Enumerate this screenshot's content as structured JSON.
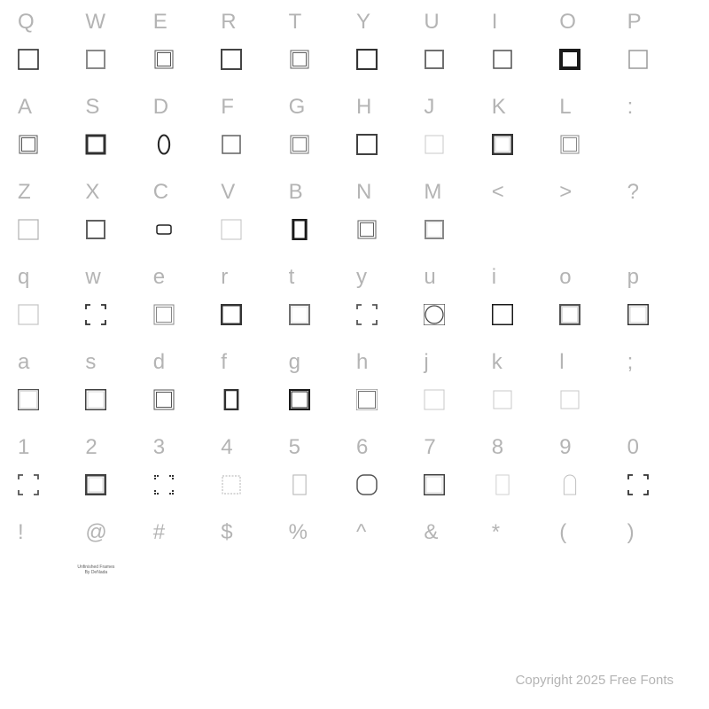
{
  "footer": "Copyright 2025 Free Fonts",
  "colors": {
    "char": "#b4b4b4",
    "glyph_stroke": "#303030",
    "glyph_light": "#bdbdbd",
    "background": "#ffffff"
  },
  "rows": [
    {
      "chars": [
        "Q",
        "W",
        "E",
        "R",
        "T",
        "Y",
        "U",
        "I",
        "O",
        "P"
      ],
      "glyphs": [
        {
          "t": "sq",
          "s": "#303030",
          "w": 1.6,
          "sz": 22,
          "fill": "none"
        },
        {
          "t": "sq",
          "s": "#8a8a8a",
          "w": 2,
          "sz": 20,
          "fill": "none"
        },
        {
          "t": "dbl",
          "s": "#555555",
          "sz": 20
        },
        {
          "t": "sq",
          "s": "#444444",
          "w": 2,
          "sz": 22,
          "fill": "none"
        },
        {
          "t": "dbl",
          "s": "#606060",
          "sz": 20
        },
        {
          "t": "sq",
          "s": "#333333",
          "w": 2.2,
          "sz": 22,
          "fill": "none"
        },
        {
          "t": "sq",
          "s": "#707070",
          "w": 2,
          "sz": 20,
          "fill": "none"
        },
        {
          "t": "sq",
          "s": "#505050",
          "w": 1.5,
          "sz": 20,
          "fill": "none"
        },
        {
          "t": "sq",
          "s": "#1a1a1a",
          "w": 4,
          "sz": 24,
          "fill": "#1a1a1a",
          "inner": "#ffffff"
        },
        {
          "t": "sq",
          "s": "#9a9a9a",
          "w": 1.5,
          "sz": 20,
          "fill": "none"
        }
      ]
    },
    {
      "chars": [
        "A",
        "S",
        "D",
        "F",
        "G",
        "H",
        "J",
        "K",
        "L",
        ":"
      ],
      "glyphs": [
        {
          "t": "dbl",
          "s": "#555555",
          "sz": 20
        },
        {
          "t": "sq",
          "s": "#303030",
          "w": 3,
          "sz": 20,
          "fill": "none"
        },
        {
          "t": "oval",
          "s": "#222222",
          "w": 2,
          "sz": 22
        },
        {
          "t": "sq",
          "s": "#606060",
          "w": 1.5,
          "sz": 20,
          "fill": "none"
        },
        {
          "t": "dbl",
          "s": "#707070",
          "sz": 20
        },
        {
          "t": "sq",
          "s": "#404040",
          "w": 2,
          "sz": 22,
          "fill": "none"
        },
        {
          "t": "sq",
          "s": "#c8c8c8",
          "w": 1,
          "sz": 20,
          "fill": "none"
        },
        {
          "t": "sq",
          "s": "#333333",
          "w": 3,
          "sz": 22,
          "fill": "none",
          "pattern": true
        },
        {
          "t": "dbl",
          "s": "#888888",
          "sz": 20
        },
        {
          "t": "none"
        }
      ]
    },
    {
      "chars": [
        "Z",
        "X",
        "C",
        "V",
        "B",
        "N",
        "M",
        "<",
        ">",
        "?"
      ],
      "glyphs": [
        {
          "t": "sq",
          "s": "#b0b0b0",
          "w": 1.2,
          "sz": 22,
          "fill": "none"
        },
        {
          "t": "sq",
          "s": "#606060",
          "w": 2,
          "sz": 20,
          "fill": "none"
        },
        {
          "t": "hshape",
          "s": "#222222"
        },
        {
          "t": "sq",
          "s": "#c0c0c0",
          "w": 1,
          "sz": 22,
          "fill": "none"
        },
        {
          "t": "rect",
          "s": "#1a1a1a",
          "w": 3,
          "sz": 22,
          "fill": "none"
        },
        {
          "t": "dbl",
          "s": "#606060",
          "sz": 20
        },
        {
          "t": "sq",
          "s": "#888888",
          "w": 2,
          "sz": 20,
          "fill": "none",
          "pattern": true
        },
        {
          "t": "none"
        },
        {
          "t": "none"
        },
        {
          "t": "none"
        }
      ]
    },
    {
      "chars": [
        "q",
        "w",
        "e",
        "r",
        "t",
        "y",
        "u",
        "i",
        "o",
        "p"
      ],
      "glyphs": [
        {
          "t": "sq",
          "s": "#c8c8c8",
          "w": 1.3,
          "sz": 22,
          "fill": "none"
        },
        {
          "t": "corners",
          "s": "#303030",
          "sz": 22
        },
        {
          "t": "dbl",
          "s": "#888888",
          "sz": 22
        },
        {
          "t": "sq",
          "s": "#333333",
          "w": 3,
          "sz": 22,
          "fill": "none"
        },
        {
          "t": "sq",
          "s": "#707070",
          "w": 2,
          "sz": 22,
          "fill": "none",
          "pattern": true
        },
        {
          "t": "corners",
          "s": "#555555",
          "sz": 22,
          "curve": true
        },
        {
          "t": "circle-in-sq",
          "s": "#404040",
          "sz": 24
        },
        {
          "t": "sq",
          "s": "#1a1a1a",
          "w": 3,
          "sz": 24,
          "fill": "none"
        },
        {
          "t": "sq",
          "s": "#555555",
          "w": 2.5,
          "sz": 22,
          "fill": "none",
          "pattern": true
        },
        {
          "t": "sq",
          "s": "#333333",
          "w": 3,
          "sz": 24,
          "fill": "none",
          "pattern": true
        }
      ]
    },
    {
      "chars": [
        "a",
        "s",
        "d",
        "f",
        "g",
        "h",
        "j",
        "k",
        "l",
        ";"
      ],
      "glyphs": [
        {
          "t": "sq",
          "s": "#505050",
          "w": 2.5,
          "sz": 24,
          "fill": "none",
          "pattern": true
        },
        {
          "t": "sq",
          "s": "#404040",
          "w": 3,
          "sz": 24,
          "fill": "none",
          "pattern": true
        },
        {
          "t": "dbl",
          "s": "#555555",
          "sz": 22
        },
        {
          "t": "rect",
          "s": "#303030",
          "w": 2.5,
          "sz": 22,
          "fill": "none"
        },
        {
          "t": "sq",
          "s": "#1a1a1a",
          "w": 4,
          "sz": 24,
          "fill": "none",
          "inner_dbl": true
        },
        {
          "t": "dbl",
          "s": "#707070",
          "sz": 24
        },
        {
          "t": "sq",
          "s": "#c8c8c8",
          "w": 1,
          "sz": 22,
          "fill": "none"
        },
        {
          "t": "sq",
          "s": "#c8c8c8",
          "w": 1,
          "sz": 20,
          "fill": "none"
        },
        {
          "t": "sq",
          "s": "#c8c8c8",
          "w": 1,
          "sz": 20,
          "fill": "none"
        },
        {
          "t": "none"
        }
      ]
    },
    {
      "chars": [
        "1",
        "2",
        "3",
        "4",
        "5",
        "6",
        "7",
        "8",
        "9",
        "0"
      ],
      "glyphs": [
        {
          "t": "corners",
          "s": "#555555",
          "sz": 22,
          "ornate": true
        },
        {
          "t": "sq",
          "s": "#404040",
          "w": 3,
          "sz": 22,
          "fill": "none",
          "pattern": true
        },
        {
          "t": "corners-dots",
          "s": "#333333",
          "sz": 22
        },
        {
          "t": "sq",
          "s": "#b0b0b0",
          "w": 1,
          "sz": 20,
          "fill": "none",
          "dashed": true
        },
        {
          "t": "rect",
          "s": "#b0b0b0",
          "w": 1,
          "sz": 22,
          "fill": "none"
        },
        {
          "t": "rounded",
          "s": "#555555",
          "sz": 22
        },
        {
          "t": "sq",
          "s": "#404040",
          "w": 3,
          "sz": 24,
          "fill": "none",
          "pattern": true
        },
        {
          "t": "rect",
          "s": "#d0d0d0",
          "w": 1,
          "sz": 22,
          "fill": "none"
        },
        {
          "t": "arch",
          "s": "#c0c0c0",
          "sz": 22
        },
        {
          "t": "corners",
          "s": "#333333",
          "sz": 22
        }
      ]
    },
    {
      "chars": [
        "!",
        "@",
        "#",
        "$",
        "%",
        "^",
        "&",
        "*",
        "(",
        ")"
      ],
      "glyphs": [
        {
          "t": "none"
        },
        {
          "t": "text",
          "content": "Unfinished Frames\nBy DeNada"
        },
        {
          "t": "none"
        },
        {
          "t": "none"
        },
        {
          "t": "none"
        },
        {
          "t": "none"
        },
        {
          "t": "none"
        },
        {
          "t": "none"
        },
        {
          "t": "none"
        },
        {
          "t": "none"
        }
      ]
    }
  ]
}
